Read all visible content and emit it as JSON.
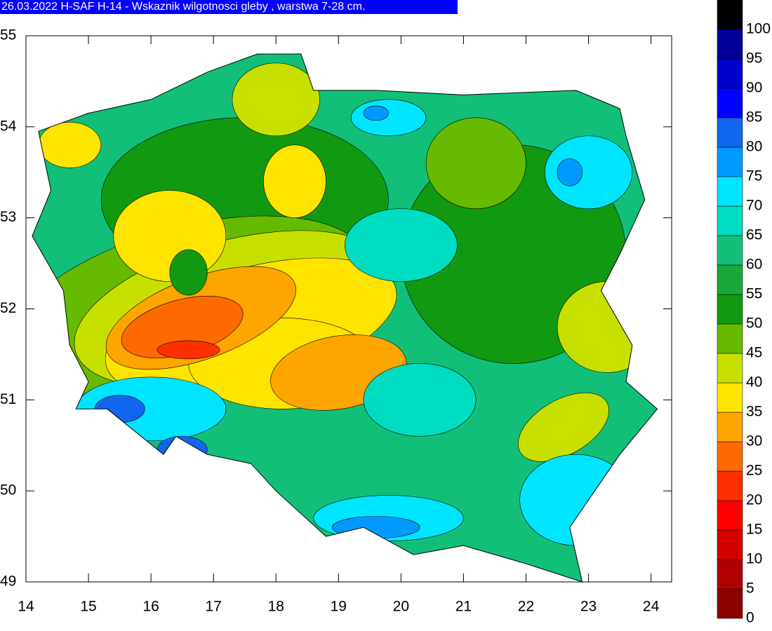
{
  "title": "26.03.2022 H-SAF H-14 - Wskaznik wilgotnosci gleby , warstwa 7-28 cm.",
  "xlim": [
    14,
    24.33
  ],
  "xticks": [
    14,
    15,
    16,
    17,
    18,
    19,
    20,
    21,
    22,
    23,
    24
  ],
  "ylim": [
    49,
    55
  ],
  "yticks": [
    49,
    50,
    51,
    52,
    53,
    54,
    55
  ],
  "colorbar": {
    "levels": [
      0,
      5,
      10,
      15,
      20,
      25,
      30,
      35,
      40,
      45,
      50,
      55,
      60,
      65,
      70,
      75,
      80,
      85,
      90,
      95,
      100
    ],
    "colors": [
      "#8b0000",
      "#b00000",
      "#d40000",
      "#ff0000",
      "#ff3000",
      "#ff6a00",
      "#ffa500",
      "#ffe400",
      "#c8e000",
      "#66bb00",
      "#119911",
      "#1aa83a",
      "#12bf78",
      "#00dcc0",
      "#00e5ff",
      "#0099ff",
      "#1166ee",
      "#0000ff",
      "#0000cc",
      "#000099",
      "#000000"
    ]
  }
}
